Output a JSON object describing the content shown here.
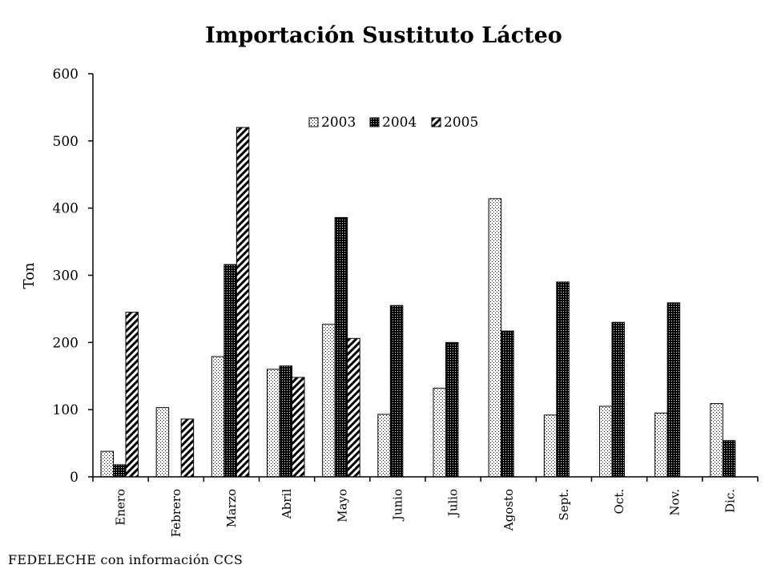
{
  "chart_data": {
    "type": "bar",
    "title": "Importación Sustituto Lácteo",
    "xlabel": "",
    "ylabel": "Ton",
    "ylim": [
      0,
      600
    ],
    "yticks": [
      0,
      100,
      200,
      300,
      400,
      500,
      600
    ],
    "categories": [
      "Enero",
      "Febrero",
      "Marzo",
      "Abril",
      "Mayo",
      "Junio",
      "Julio",
      "Agosto",
      "Sept.",
      "Oct.",
      "Nov.",
      "Dic."
    ],
    "series": [
      {
        "name": "2003",
        "pattern": "dotted",
        "values": [
          38,
          103,
          179,
          160,
          227,
          93,
          132,
          414,
          92,
          105,
          95,
          109
        ]
      },
      {
        "name": "2004",
        "pattern": "dense-dotted",
        "values": [
          18,
          null,
          316,
          165,
          386,
          255,
          200,
          217,
          290,
          230,
          259,
          54
        ]
      },
      {
        "name": "2005",
        "pattern": "diagonal-hatch",
        "values": [
          245,
          86,
          520,
          148,
          206,
          null,
          null,
          null,
          null,
          null,
          null,
          null
        ]
      }
    ],
    "legend": "top-center",
    "grid": false
  },
  "footer": {
    "source": "FEDELECHE con información CCS"
  },
  "colors": {
    "axis": "#000000",
    "bar_outline": "#000000",
    "background": "#ffffff"
  }
}
